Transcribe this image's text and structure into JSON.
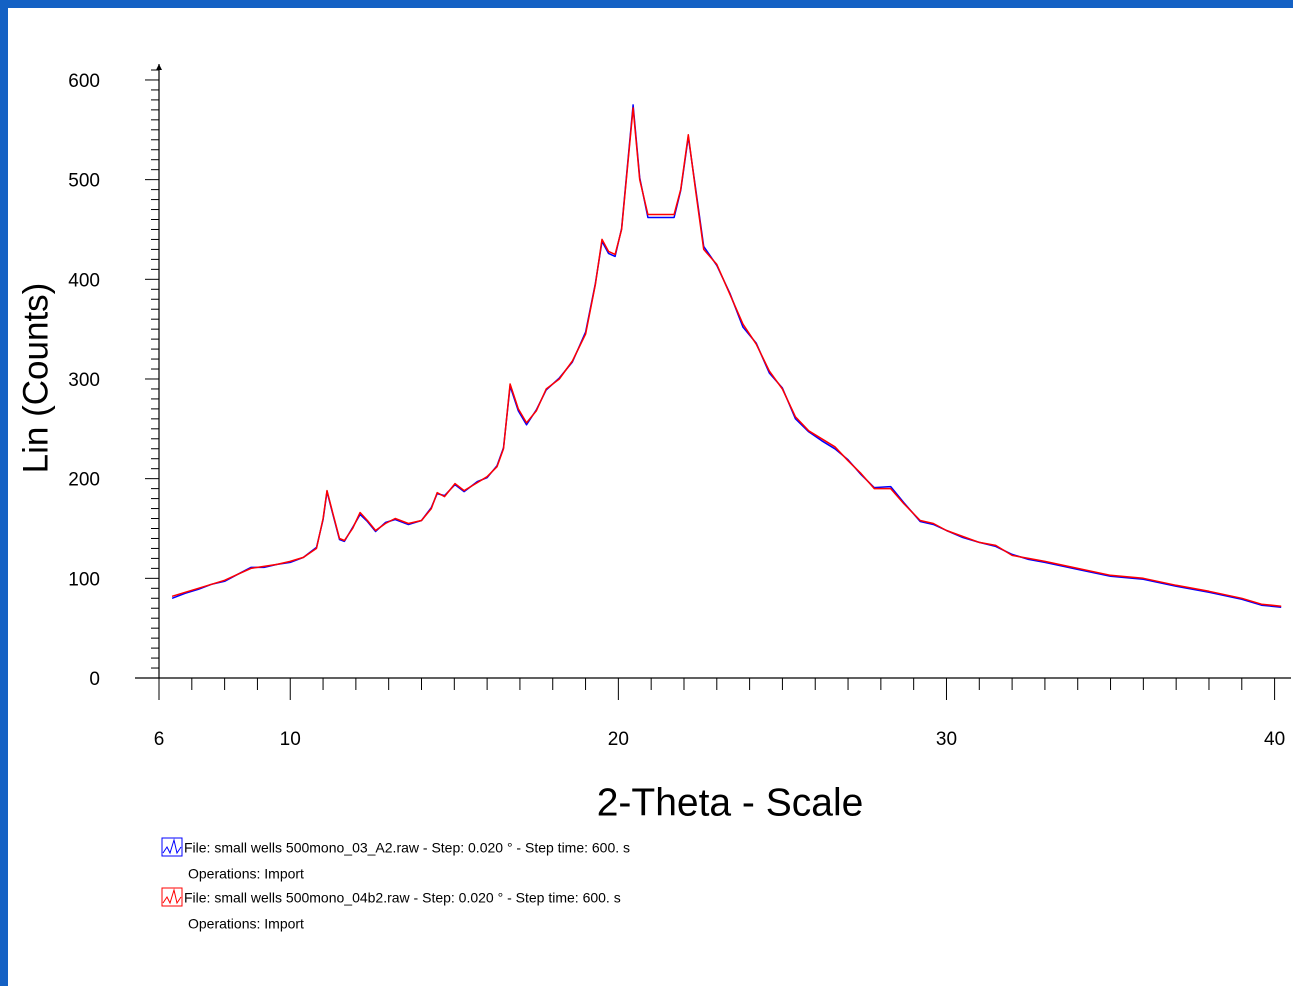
{
  "chart_data": {
    "type": "line",
    "xlabel": "2-Theta - Scale",
    "ylabel": "Lin (Counts)",
    "xlim": [
      6,
      40.5
    ],
    "ylim": [
      0,
      610
    ],
    "xticks": [
      6,
      10,
      20,
      30,
      40
    ],
    "yticks": [
      0,
      100,
      200,
      300,
      400,
      500,
      600
    ],
    "xminor_ticks": [
      7,
      8,
      9,
      11,
      12,
      13,
      14,
      15,
      16,
      17,
      18,
      19,
      21,
      22,
      23,
      24,
      25,
      26,
      27,
      28,
      29,
      31,
      32,
      33,
      34,
      35,
      36,
      37,
      38,
      39
    ],
    "yminor_ticks": [
      10,
      20,
      30,
      40,
      50,
      60,
      70,
      80,
      90,
      110,
      120,
      130,
      140,
      150,
      160,
      170,
      180,
      190,
      210,
      220,
      230,
      240,
      250,
      260,
      270,
      280,
      290,
      310,
      320,
      330,
      340,
      350,
      360,
      370,
      380,
      390,
      410,
      420,
      430,
      440,
      450,
      460,
      470,
      480,
      490,
      510,
      520,
      530,
      540,
      550,
      560,
      570,
      580,
      590,
      610
    ],
    "x": [
      6.4,
      6.8,
      7.2,
      7.6,
      8.0,
      8.4,
      8.8,
      9.2,
      9.6,
      10.0,
      10.4,
      10.8,
      11.0,
      11.12,
      11.3,
      11.5,
      11.65,
      11.9,
      12.13,
      12.35,
      12.6,
      12.9,
      13.2,
      13.6,
      14.0,
      14.3,
      14.48,
      14.7,
      15.02,
      15.3,
      15.7,
      16.0,
      16.3,
      16.5,
      16.7,
      16.95,
      17.2,
      17.5,
      17.8,
      18.2,
      18.6,
      19.0,
      19.3,
      19.5,
      19.7,
      19.9,
      20.1,
      20.3,
      20.45,
      20.65,
      20.9,
      21.3,
      21.7,
      21.9,
      22.13,
      22.35,
      22.6,
      23.0,
      23.4,
      23.8,
      24.2,
      24.6,
      25.0,
      25.4,
      25.8,
      26.2,
      26.6,
      27.0,
      27.4,
      27.8,
      28.3,
      28.7,
      29.2,
      29.6,
      30.0,
      30.5,
      31.0,
      31.5,
      32.0,
      32.5,
      33.0,
      34.0,
      35.0,
      36.0,
      37.0,
      38.0,
      39.0,
      39.6,
      40.2
    ],
    "series": [
      {
        "name": "File: small wells 500mono_03_A2.raw - Step: 0.020 ° - Step time: 600. s",
        "note": "Operations: Import",
        "color": "#0000ff",
        "values": [
          80,
          85,
          89,
          94,
          97,
          104,
          111,
          111,
          114,
          116,
          121,
          131,
          159,
          187,
          164,
          139,
          137,
          151,
          164,
          157,
          147,
          156,
          159,
          154,
          158,
          171,
          185,
          183,
          194,
          187,
          197,
          201,
          213,
          231,
          293,
          268,
          254,
          269,
          289,
          301,
          317,
          347,
          396,
          438,
          426,
          423,
          451,
          522,
          575,
          502,
          462,
          462,
          462,
          489,
          543,
          492,
          433,
          414,
          386,
          352,
          336,
          306,
          291,
          260,
          247,
          238,
          230,
          219,
          204,
          191,
          192,
          176,
          157,
          154,
          148,
          141,
          136,
          132,
          124,
          119,
          116,
          109,
          102,
          99,
          92,
          86,
          79,
          73,
          71
        ]
      },
      {
        "name": "File: small wells 500mono_04b2.raw - Step: 0.020 ° - Step time: 600. s",
        "note": "Operations: Import",
        "color": "#ff0000",
        "values": [
          82,
          86,
          90,
          94,
          98,
          104,
          110,
          112,
          114,
          117,
          121,
          130,
          160,
          188,
          165,
          140,
          138,
          150,
          166,
          158,
          148,
          155,
          160,
          155,
          158,
          170,
          186,
          182,
          195,
          188,
          196,
          202,
          212,
          230,
          295,
          270,
          256,
          268,
          290,
          300,
          318,
          345,
          395,
          440,
          428,
          425,
          450,
          520,
          572,
          500,
          465,
          465,
          465,
          490,
          545,
          490,
          430,
          415,
          385,
          355,
          335,
          308,
          290,
          262,
          248,
          240,
          232,
          218,
          205,
          190,
          190,
          175,
          158,
          155,
          148,
          142,
          136,
          133,
          123,
          120,
          117,
          110,
          103,
          100,
          93,
          87,
          80,
          74,
          72
        ]
      }
    ]
  }
}
